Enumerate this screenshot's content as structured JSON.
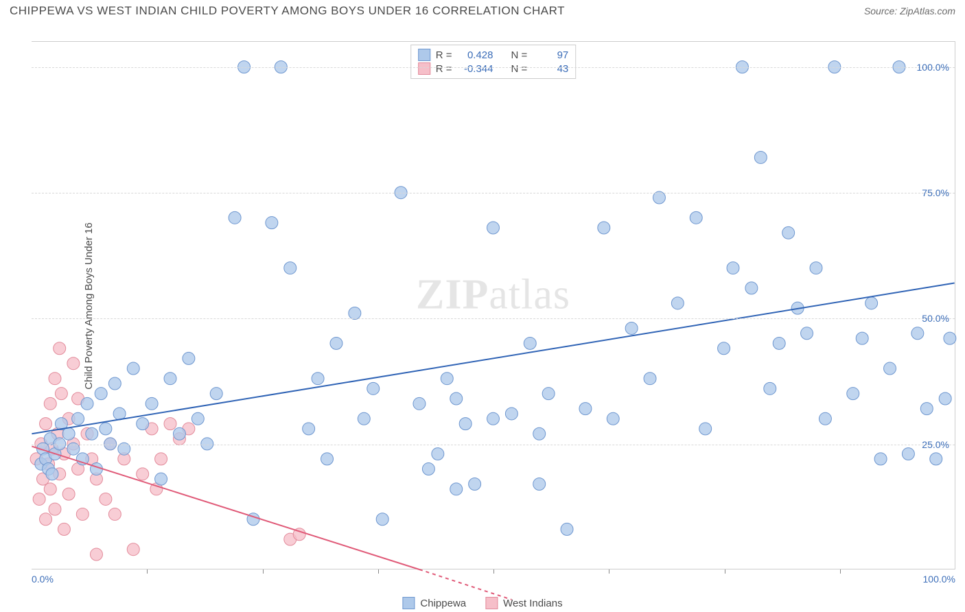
{
  "header": {
    "title": "CHIPPEWA VS WEST INDIAN CHILD POVERTY AMONG BOYS UNDER 16 CORRELATION CHART",
    "source_prefix": "Source: ",
    "source_name": "ZipAtlas.com"
  },
  "watermark": {
    "zip": "ZIP",
    "atlas": "atlas"
  },
  "chart": {
    "type": "scatter",
    "ylabel": "Child Poverty Among Boys Under 16",
    "xlim": [
      0,
      100
    ],
    "ylim": [
      0,
      105
    ],
    "yticks": [
      {
        "v": 25,
        "label": "25.0%"
      },
      {
        "v": 50,
        "label": "50.0%"
      },
      {
        "v": 75,
        "label": "75.0%"
      },
      {
        "v": 100,
        "label": "100.0%"
      }
    ],
    "ytick_grid": [
      25,
      50,
      75,
      100
    ],
    "x_minor_ticks": [
      12.5,
      25,
      37.5,
      50,
      62.5,
      75,
      87.5
    ],
    "xtick_labels": [
      {
        "v": 0,
        "label": "0.0%"
      },
      {
        "v": 100,
        "label": "100.0%"
      }
    ],
    "plot_bg": "#ffffff",
    "grid_color": "#d8d8d8",
    "series": {
      "chippewa": {
        "label": "Chippewa",
        "marker_fill": "#aec9ea",
        "marker_stroke": "#6d96cf",
        "marker_r": 9,
        "marker_opacity": 0.78,
        "line_color": "#2f63b5",
        "line_width": 2,
        "R": "0.428",
        "N": "97",
        "regression": {
          "x1": 0,
          "y1": 27,
          "x2": 100,
          "y2": 57
        },
        "points": [
          [
            1,
            21
          ],
          [
            1.2,
            24
          ],
          [
            1.5,
            22
          ],
          [
            1.8,
            20
          ],
          [
            2,
            26
          ],
          [
            2.2,
            19
          ],
          [
            2.5,
            23
          ],
          [
            3,
            25
          ],
          [
            3.2,
            29
          ],
          [
            4,
            27
          ],
          [
            4.5,
            24
          ],
          [
            5,
            30
          ],
          [
            5.5,
            22
          ],
          [
            6,
            33
          ],
          [
            6.5,
            27
          ],
          [
            7,
            20
          ],
          [
            7.5,
            35
          ],
          [
            8,
            28
          ],
          [
            8.5,
            25
          ],
          [
            9,
            37
          ],
          [
            9.5,
            31
          ],
          [
            10,
            24
          ],
          [
            11,
            40
          ],
          [
            12,
            29
          ],
          [
            13,
            33
          ],
          [
            14,
            18
          ],
          [
            15,
            38
          ],
          [
            16,
            27
          ],
          [
            17,
            42
          ],
          [
            18,
            30
          ],
          [
            19,
            25
          ],
          [
            20,
            35
          ],
          [
            22,
            70
          ],
          [
            23,
            100
          ],
          [
            24,
            10
          ],
          [
            26,
            69
          ],
          [
            27,
            100
          ],
          [
            28,
            60
          ],
          [
            30,
            28
          ],
          [
            31,
            38
          ],
          [
            32,
            22
          ],
          [
            33,
            45
          ],
          [
            35,
            51
          ],
          [
            36,
            30
          ],
          [
            37,
            36
          ],
          [
            38,
            10
          ],
          [
            40,
            75
          ],
          [
            42,
            33
          ],
          [
            43,
            20
          ],
          [
            44,
            23
          ],
          [
            45,
            38
          ],
          [
            46,
            16
          ],
          [
            47,
            29
          ],
          [
            50,
            68
          ],
          [
            52,
            31
          ],
          [
            54,
            45
          ],
          [
            55,
            27
          ],
          [
            56,
            35
          ],
          [
            58,
            8
          ],
          [
            60,
            32
          ],
          [
            62,
            68
          ],
          [
            63,
            30
          ],
          [
            65,
            48
          ],
          [
            67,
            38
          ],
          [
            68,
            74
          ],
          [
            70,
            53
          ],
          [
            72,
            70
          ],
          [
            73,
            28
          ],
          [
            75,
            44
          ],
          [
            76,
            60
          ],
          [
            77,
            100
          ],
          [
            78,
            56
          ],
          [
            79,
            82
          ],
          [
            80,
            36
          ],
          [
            81,
            45
          ],
          [
            82,
            67
          ],
          [
            83,
            52
          ],
          [
            84,
            47
          ],
          [
            85,
            60
          ],
          [
            86,
            30
          ],
          [
            87,
            100
          ],
          [
            89,
            35
          ],
          [
            90,
            46
          ],
          [
            91,
            53
          ],
          [
            92,
            22
          ],
          [
            93,
            40
          ],
          [
            94,
            100
          ],
          [
            95,
            23
          ],
          [
            96,
            47
          ],
          [
            97,
            32
          ],
          [
            98,
            22
          ],
          [
            99,
            34
          ],
          [
            99.5,
            46
          ],
          [
            46,
            34
          ],
          [
            48,
            17
          ],
          [
            55,
            17
          ],
          [
            50,
            30
          ]
        ]
      },
      "westindians": {
        "label": "West Indians",
        "marker_fill": "#f6bfc9",
        "marker_stroke": "#e28a9a",
        "marker_r": 9,
        "marker_opacity": 0.78,
        "line_color": "#e05a78",
        "line_width": 2,
        "R": "-0.344",
        "N": "43",
        "regression": {
          "x1": 0,
          "y1": 24.5,
          "x2": 42,
          "y2": 0
        },
        "regression_dash": {
          "x1": 42,
          "y1": 0,
          "x2": 52,
          "y2": -6
        },
        "points": [
          [
            0.5,
            22
          ],
          [
            0.8,
            14
          ],
          [
            1,
            25
          ],
          [
            1.2,
            18
          ],
          [
            1.5,
            29
          ],
          [
            1.5,
            10
          ],
          [
            1.8,
            21
          ],
          [
            2,
            33
          ],
          [
            2,
            16
          ],
          [
            2.2,
            24
          ],
          [
            2.5,
            38
          ],
          [
            2.5,
            12
          ],
          [
            2.8,
            27
          ],
          [
            3,
            44
          ],
          [
            3,
            19
          ],
          [
            3.2,
            35
          ],
          [
            3.5,
            23
          ],
          [
            3.5,
            8
          ],
          [
            4,
            30
          ],
          [
            4,
            15
          ],
          [
            4.5,
            25
          ],
          [
            4.5,
            41
          ],
          [
            5,
            20
          ],
          [
            5,
            34
          ],
          [
            5.5,
            11
          ],
          [
            6,
            27
          ],
          [
            6.5,
            22
          ],
          [
            7,
            18
          ],
          [
            7,
            3
          ],
          [
            8,
            14
          ],
          [
            8.5,
            25
          ],
          [
            9,
            11
          ],
          [
            10,
            22
          ],
          [
            11,
            4
          ],
          [
            12,
            19
          ],
          [
            13,
            28
          ],
          [
            13.5,
            16
          ],
          [
            14,
            22
          ],
          [
            15,
            29
          ],
          [
            16,
            26
          ],
          [
            17,
            28
          ],
          [
            28,
            6
          ],
          [
            29,
            7
          ]
        ]
      }
    },
    "legend_top": {
      "r_label": "R =",
      "n_label": "N ="
    },
    "legend_bottom": [
      {
        "key": "chippewa"
      },
      {
        "key": "westindians"
      }
    ]
  }
}
